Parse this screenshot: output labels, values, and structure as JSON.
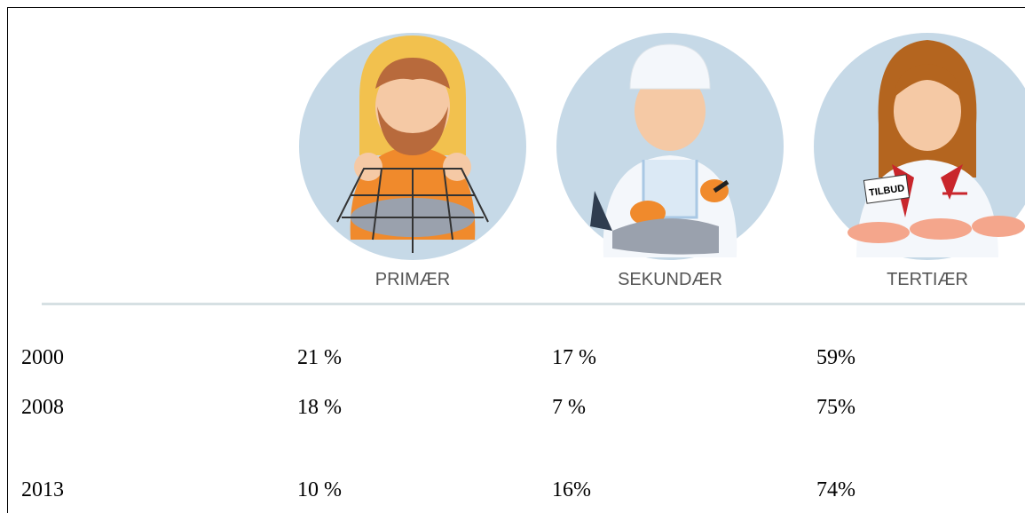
{
  "table": {
    "headers": [
      "PRIMÆR",
      "SEKUNDÆR",
      "TERTIÆR"
    ],
    "rows": [
      [
        "2000",
        "21 %",
        "17 %",
        "59%"
      ],
      [
        "2008",
        "18 %",
        "7 %",
        "75%"
      ],
      [
        "2013",
        "10 %",
        "16%",
        "74%"
      ]
    ]
  }
}
